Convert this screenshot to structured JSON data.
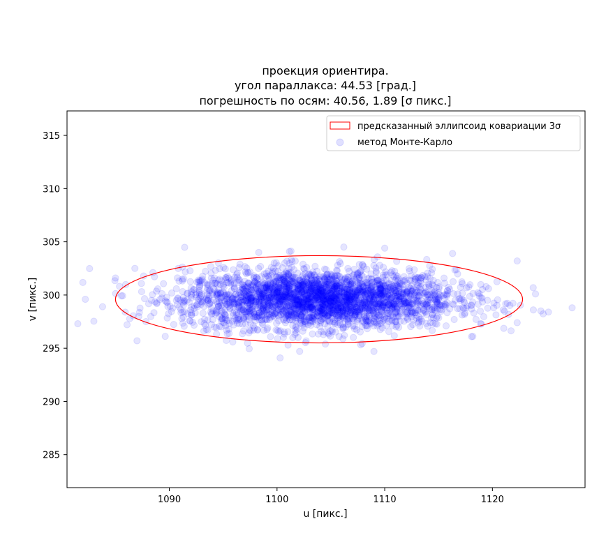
{
  "chart_data": {
    "type": "scatter",
    "title_lines": [
      "проекция ориентира.",
      "угол параллакса: 44.53 [град.]",
      "погрешность по осям: 40.56, 1.89 [σ пикс.]"
    ],
    "xlabel": "u [пикс.]",
    "ylabel": "v [пикс.]",
    "xlim": [
      1080.5,
      1128.6
    ],
    "ylim": [
      281.9,
      317.3
    ],
    "xticks": [
      1090,
      1100,
      1110,
      1120
    ],
    "yticks": [
      285,
      290,
      295,
      300,
      305,
      310,
      315
    ],
    "grid": false,
    "legend_position": "upper right",
    "legend": [
      {
        "label": "предсказанный эллипсоид ковариации 3σ",
        "kind": "ellipse-outline",
        "color": "#ff0000"
      },
      {
        "label": "метод Монте-Карло",
        "kind": "scatter-marker",
        "color": "#0000ff"
      }
    ],
    "ellipse": {
      "center": [
        1103.9,
        299.6
      ],
      "semi_axis_u": 18.9,
      "semi_axis_v": 4.1,
      "angle_deg": 0,
      "color": "#ff0000"
    },
    "scatter": {
      "name": "метод Монте-Карло",
      "color": "#0000ff",
      "alpha": 0.1,
      "center": [
        1103.9,
        299.6
      ],
      "std": [
        6.3,
        1.37
      ],
      "approx_count": 3000,
      "notable_points": [
        [
          1081.5,
          297.3
        ],
        [
          1082.2,
          299.6
        ],
        [
          1083.8,
          298.9
        ],
        [
          1085.0,
          301.6
        ],
        [
          1086.8,
          302.5
        ],
        [
          1087.0,
          295.7
        ],
        [
          1098.3,
          304.0
        ],
        [
          1102.1,
          294.7
        ],
        [
          1109.0,
          294.7
        ],
        [
          1110.0,
          304.4
        ],
        [
          1116.3,
          303.9
        ],
        [
          1122.3,
          303.2
        ],
        [
          1122.3,
          297.4
        ],
        [
          1123.8,
          298.6
        ],
        [
          1124.0,
          300.1
        ],
        [
          1124.5,
          298.5
        ],
        [
          1125.2,
          298.4
        ],
        [
          1127.4,
          298.8
        ]
      ]
    }
  }
}
